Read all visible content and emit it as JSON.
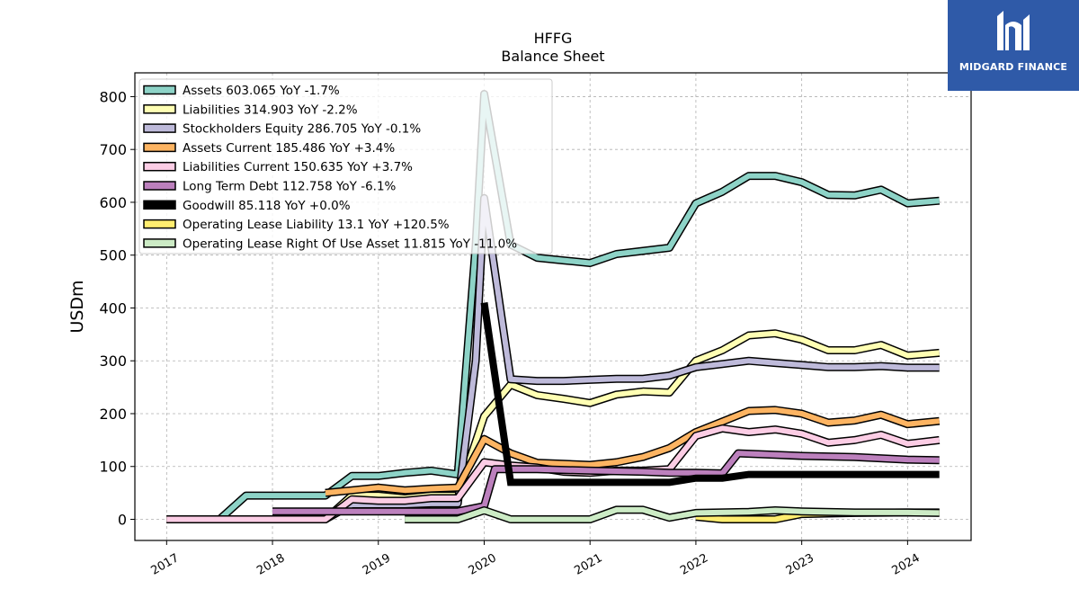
{
  "brand": {
    "name": "MIDGARD FINANCE",
    "background": "#2f5aa8"
  },
  "chart_data": {
    "type": "line",
    "title": "HFFG",
    "subtitle": "Balance  Sheet",
    "ylabel": "USDm",
    "xlabel": "",
    "x_range": [
      2016.7,
      2024.6
    ],
    "ylim": [
      -40,
      845
    ],
    "yticks": [
      0,
      100,
      200,
      300,
      400,
      500,
      600,
      700,
      800
    ],
    "xticks": [
      "2017",
      "2018",
      "2019",
      "2020",
      "2021",
      "2022",
      "2023",
      "2024"
    ],
    "grid": true,
    "legend_position": "top-left",
    "series": [
      {
        "name": "Assets",
        "legend": "Assets  603.065 YoY -1.7%",
        "color": "#8dd3c7",
        "width": 6,
        "points": [
          [
            2017.0,
            0
          ],
          [
            2017.5,
            0
          ],
          [
            2017.75,
            45
          ],
          [
            2018.0,
            45
          ],
          [
            2018.5,
            45
          ],
          [
            2018.75,
            82
          ],
          [
            2019.0,
            82
          ],
          [
            2019.25,
            88
          ],
          [
            2019.5,
            92
          ],
          [
            2019.75,
            85
          ],
          [
            2019.92,
            520
          ],
          [
            2020.0,
            805
          ],
          [
            2020.25,
            520
          ],
          [
            2020.5,
            495
          ],
          [
            2020.75,
            490
          ],
          [
            2021.0,
            485
          ],
          [
            2021.25,
            502
          ],
          [
            2021.5,
            508
          ],
          [
            2021.75,
            514
          ],
          [
            2022.0,
            598
          ],
          [
            2022.25,
            620
          ],
          [
            2022.5,
            650
          ],
          [
            2022.75,
            650
          ],
          [
            2023.0,
            638
          ],
          [
            2023.25,
            614
          ],
          [
            2023.5,
            613
          ],
          [
            2023.75,
            624
          ],
          [
            2024.0,
            598
          ],
          [
            2024.3,
            603
          ]
        ]
      },
      {
        "name": "Liabilities",
        "legend": "Liabilities  314.903 YoY -2.2%",
        "color": "#ffffb3",
        "width": 6,
        "points": [
          [
            2017.0,
            0
          ],
          [
            2017.5,
            0
          ],
          [
            2018.0,
            0
          ],
          [
            2018.5,
            0
          ],
          [
            2018.75,
            45
          ],
          [
            2019.0,
            45
          ],
          [
            2019.25,
            40
          ],
          [
            2019.5,
            45
          ],
          [
            2019.75,
            45
          ],
          [
            2020.0,
            195
          ],
          [
            2020.25,
            255
          ],
          [
            2020.5,
            235
          ],
          [
            2020.75,
            228
          ],
          [
            2021.0,
            220
          ],
          [
            2021.25,
            236
          ],
          [
            2021.5,
            242
          ],
          [
            2021.75,
            240
          ],
          [
            2022.0,
            300
          ],
          [
            2022.25,
            320
          ],
          [
            2022.5,
            348
          ],
          [
            2022.75,
            352
          ],
          [
            2023.0,
            340
          ],
          [
            2023.25,
            320
          ],
          [
            2023.5,
            320
          ],
          [
            2023.75,
            330
          ],
          [
            2024.0,
            310
          ],
          [
            2024.3,
            315
          ]
        ]
      },
      {
        "name": "Stockholders Equity",
        "legend": "Stockholders Equity  286.705 YoY -0.1%",
        "color": "#bebada",
        "width": 6,
        "points": [
          [
            2018.5,
            0
          ],
          [
            2018.75,
            28
          ],
          [
            2019.0,
            28
          ],
          [
            2019.25,
            28
          ],
          [
            2019.5,
            30
          ],
          [
            2019.75,
            30
          ],
          [
            2019.92,
            300
          ],
          [
            2020.0,
            608
          ],
          [
            2020.25,
            265
          ],
          [
            2020.5,
            262
          ],
          [
            2020.75,
            262
          ],
          [
            2021.0,
            264
          ],
          [
            2021.25,
            266
          ],
          [
            2021.5,
            266
          ],
          [
            2021.75,
            272
          ],
          [
            2022.0,
            288
          ],
          [
            2022.25,
            294
          ],
          [
            2022.5,
            300
          ],
          [
            2022.75,
            296
          ],
          [
            2023.0,
            292
          ],
          [
            2023.25,
            288
          ],
          [
            2023.5,
            288
          ],
          [
            2023.75,
            290
          ],
          [
            2024.0,
            287
          ],
          [
            2024.3,
            287
          ]
        ]
      },
      {
        "name": "Assets Current",
        "legend": "Assets Current  185.486 YoY +3.4%",
        "color": "#fdb462",
        "width": 6,
        "points": [
          [
            2018.5,
            50
          ],
          [
            2018.75,
            55
          ],
          [
            2019.0,
            60
          ],
          [
            2019.25,
            55
          ],
          [
            2019.5,
            58
          ],
          [
            2019.75,
            60
          ],
          [
            2020.0,
            152
          ],
          [
            2020.25,
            125
          ],
          [
            2020.5,
            107
          ],
          [
            2020.75,
            105
          ],
          [
            2021.0,
            103
          ],
          [
            2021.25,
            108
          ],
          [
            2021.5,
            118
          ],
          [
            2021.75,
            135
          ],
          [
            2022.0,
            165
          ],
          [
            2022.25,
            185
          ],
          [
            2022.5,
            205
          ],
          [
            2022.75,
            207
          ],
          [
            2023.0,
            200
          ],
          [
            2023.25,
            183
          ],
          [
            2023.5,
            187
          ],
          [
            2023.75,
            198
          ],
          [
            2024.0,
            180
          ],
          [
            2024.3,
            186
          ]
        ]
      },
      {
        "name": "Liabilities Current",
        "legend": "Liabilities Current  150.635 YoY +3.7%",
        "color": "#fccde5",
        "width": 6,
        "points": [
          [
            2017.0,
            0
          ],
          [
            2017.5,
            0
          ],
          [
            2018.0,
            0
          ],
          [
            2018.5,
            0
          ],
          [
            2018.75,
            38
          ],
          [
            2019.0,
            35
          ],
          [
            2019.25,
            35
          ],
          [
            2019.5,
            40
          ],
          [
            2019.75,
            40
          ],
          [
            2020.0,
            108
          ],
          [
            2020.25,
            102
          ],
          [
            2020.5,
            98
          ],
          [
            2020.75,
            90
          ],
          [
            2021.0,
            88
          ],
          [
            2021.25,
            92
          ],
          [
            2021.5,
            92
          ],
          [
            2021.75,
            95
          ],
          [
            2022.0,
            158
          ],
          [
            2022.25,
            172
          ],
          [
            2022.5,
            165
          ],
          [
            2022.75,
            170
          ],
          [
            2023.0,
            162
          ],
          [
            2023.25,
            145
          ],
          [
            2023.5,
            150
          ],
          [
            2023.75,
            160
          ],
          [
            2024.0,
            143
          ],
          [
            2024.3,
            150
          ]
        ]
      },
      {
        "name": "Long Term Debt",
        "legend": "Long Term Debt  112.758 YoY -6.1%",
        "color": "#bc80bd",
        "width": 6,
        "points": [
          [
            2018.0,
            15
          ],
          [
            2018.5,
            15
          ],
          [
            2019.0,
            15
          ],
          [
            2019.5,
            15
          ],
          [
            2019.75,
            15
          ],
          [
            2020.0,
            25
          ],
          [
            2020.1,
            95
          ],
          [
            2020.5,
            95
          ],
          [
            2021.0,
            92
          ],
          [
            2021.5,
            90
          ],
          [
            2021.75,
            88
          ],
          [
            2022.0,
            88
          ],
          [
            2022.25,
            87
          ],
          [
            2022.4,
            125
          ],
          [
            2022.75,
            122
          ],
          [
            2023.0,
            120
          ],
          [
            2023.5,
            118
          ],
          [
            2024.0,
            113
          ],
          [
            2024.3,
            112
          ]
        ]
      },
      {
        "name": "Goodwill",
        "legend": "Goodwill  85.118 YoY +0.0%",
        "color": "#000000",
        "width": 8,
        "solid": true,
        "points": [
          [
            2020.0,
            410
          ],
          [
            2020.25,
            70
          ],
          [
            2020.5,
            70
          ],
          [
            2021.0,
            70
          ],
          [
            2021.5,
            70
          ],
          [
            2021.75,
            70
          ],
          [
            2022.0,
            78
          ],
          [
            2022.25,
            78
          ],
          [
            2022.5,
            85
          ],
          [
            2023.0,
            85
          ],
          [
            2023.5,
            85
          ],
          [
            2024.0,
            85
          ],
          [
            2024.3,
            85
          ]
        ]
      },
      {
        "name": "Operating Lease Liability",
        "legend": "Operating Lease Liability  13.1 YoY +120.5%",
        "color": "#ffed6f",
        "width": 6,
        "points": [
          [
            2022.0,
            5
          ],
          [
            2022.25,
            0
          ],
          [
            2022.5,
            0
          ],
          [
            2022.75,
            0
          ],
          [
            2023.0,
            10
          ],
          [
            2023.5,
            12
          ],
          [
            2024.0,
            13
          ],
          [
            2024.3,
            13
          ]
        ]
      },
      {
        "name": "Operating Lease Right Of Use Asset",
        "legend": "Operating Lease Right Of Use Asset  11.815 YoY -11.0%",
        "color": "#ccebc5",
        "width": 6,
        "points": [
          [
            2019.25,
            0
          ],
          [
            2019.75,
            0
          ],
          [
            2020.0,
            17
          ],
          [
            2020.25,
            0
          ],
          [
            2020.5,
            0
          ],
          [
            2020.75,
            0
          ],
          [
            2021.0,
            0
          ],
          [
            2021.25,
            18
          ],
          [
            2021.5,
            18
          ],
          [
            2021.75,
            3
          ],
          [
            2022.0,
            12
          ],
          [
            2022.5,
            14
          ],
          [
            2022.75,
            17
          ],
          [
            2023.0,
            15
          ],
          [
            2023.5,
            13
          ],
          [
            2024.0,
            13
          ],
          [
            2024.3,
            12
          ]
        ]
      }
    ]
  }
}
